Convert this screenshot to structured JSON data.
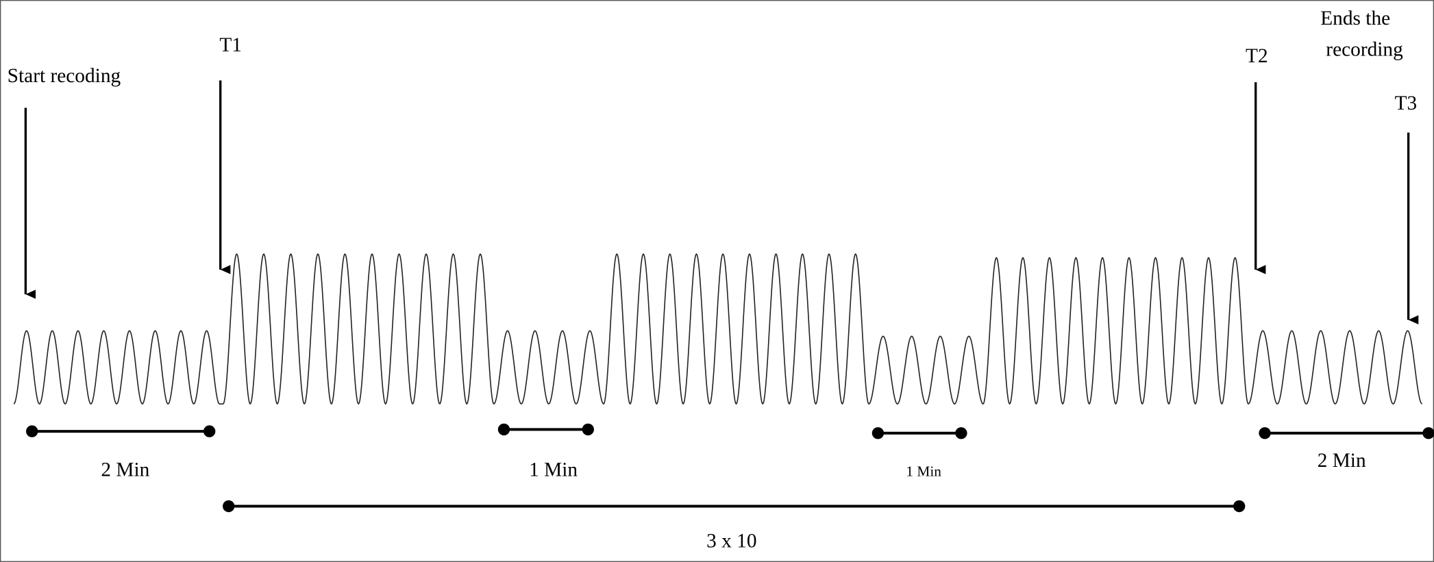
{
  "annotations": {
    "start": "Start recoding",
    "t1": "T1",
    "t2": "T2",
    "end": [
      "Ends the",
      "recording"
    ],
    "t3": "T3"
  },
  "durations": [
    "2 Min",
    "1 Min",
    "1 Min",
    "2 Min"
  ],
  "total": "3 x 10"
}
